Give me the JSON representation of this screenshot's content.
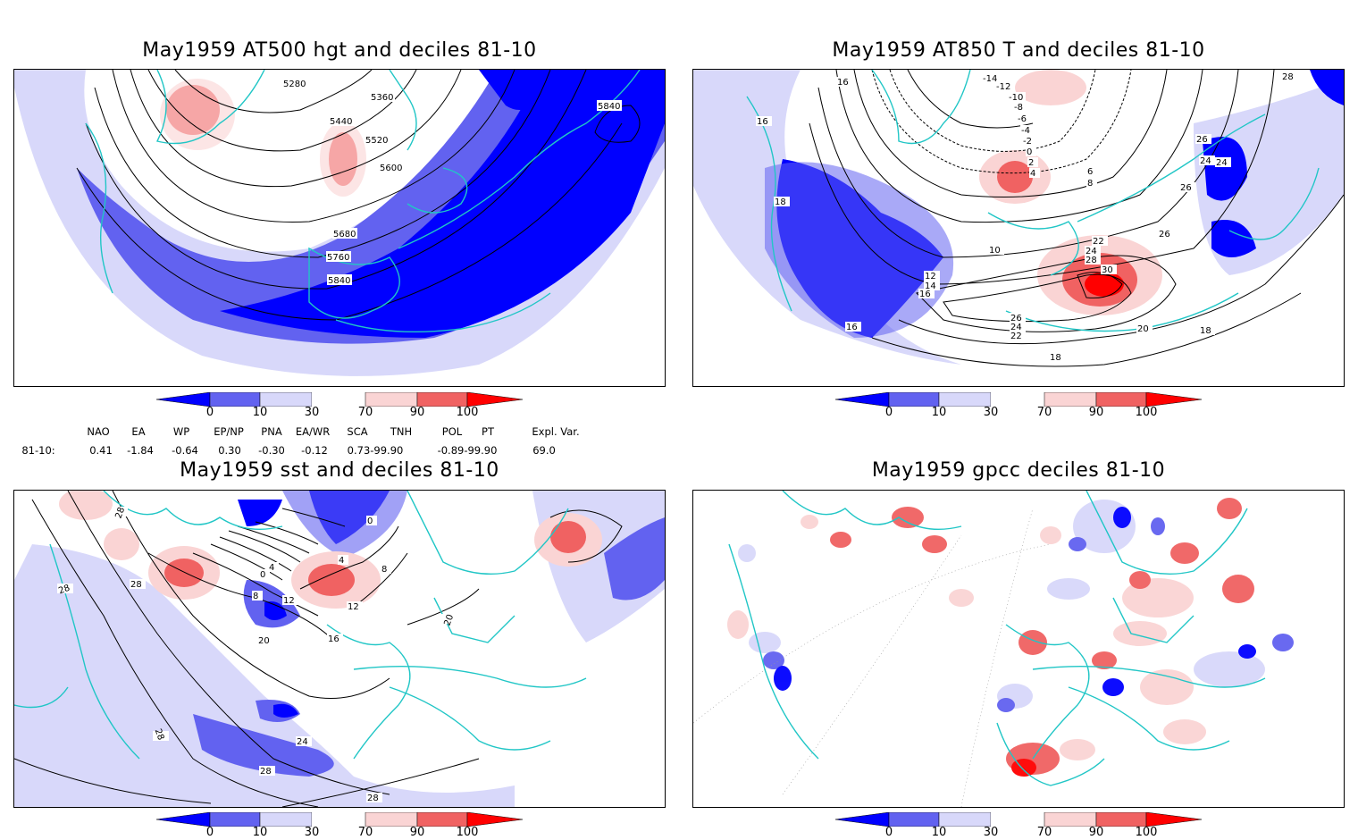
{
  "panels": [
    {
      "id": "p1",
      "title": "May1959 AT500 hgt and deciles 81-10",
      "contour_labels": [
        "5280",
        "5360",
        "5440",
        "5520",
        "5600",
        "5680",
        "5760",
        "5840",
        "5840"
      ]
    },
    {
      "id": "p2",
      "title": "May1959 AT850 T and deciles 81-10",
      "contour_labels": [
        "-14",
        "-12",
        "-10",
        "-8",
        "-6",
        "-4",
        "-2",
        "0",
        "2",
        "4",
        "6",
        "8",
        "10",
        "12",
        "14",
        "16",
        "16",
        "16",
        "18",
        "18",
        "18",
        "20",
        "22",
        "24",
        "26",
        "28",
        "30",
        "26",
        "24",
        "22",
        "26",
        "24",
        "24",
        "26",
        "28",
        "16"
      ]
    },
    {
      "id": "p3",
      "title": "May1959 sst and deciles 81-10",
      "contour_labels": [
        "28",
        "28",
        "28",
        "28",
        "20",
        "16",
        "12",
        "12",
        "8",
        "4",
        "0",
        "0",
        "4",
        "8",
        "20",
        "24",
        "28",
        "28"
      ]
    },
    {
      "id": "p4",
      "title": "May1959 gpcc deciles 81-10",
      "contour_labels": []
    }
  ],
  "colorbar": {
    "ticks": [
      "0",
      "10",
      "30",
      "70",
      "90",
      "100"
    ],
    "colors": {
      "c0": "#0000ff",
      "c1": "#6262f0",
      "c2": "#d8d8fa",
      "c3": "#ffffff",
      "c4": "#fad4d4",
      "c5": "#f06262",
      "c6": "#ff0000"
    }
  },
  "coastline_color": "#21c6c6",
  "indices": {
    "headers": [
      "NAO",
      "EA",
      "WP",
      "EP/NP",
      "PNA",
      "EA/WR",
      "SCA",
      "TNH",
      "POL",
      "PT",
      "Expl. Var."
    ],
    "row_label": "81-10:",
    "values": [
      "0.41",
      "-1.84",
      "-0.64",
      "0.30",
      "-0.30",
      "-0.12",
      "0.73-99.90",
      "-0.89-99.90",
      "69.0"
    ]
  }
}
